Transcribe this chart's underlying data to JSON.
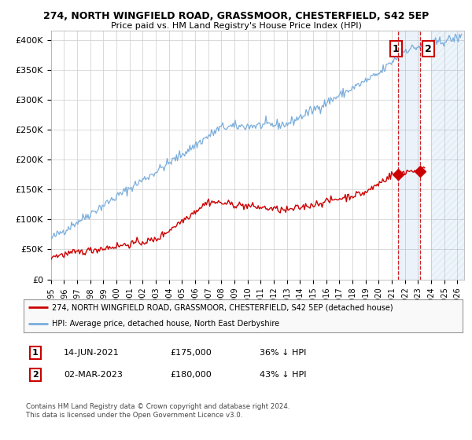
{
  "title_line1": "274, NORTH WINGFIELD ROAD, GRASSMOOR, CHESTERFIELD, S42 5EP",
  "title_line2": "Price paid vs. HM Land Registry's House Price Index (HPI)",
  "ylabel_ticks": [
    "£0",
    "£50K",
    "£100K",
    "£150K",
    "£200K",
    "£250K",
    "£300K",
    "£350K",
    "£400K"
  ],
  "ytick_values": [
    0,
    50000,
    100000,
    150000,
    200000,
    250000,
    300000,
    350000,
    400000
  ],
  "ylim": [
    0,
    415000
  ],
  "xlim_start": 1995.0,
  "xlim_end": 2026.5,
  "hpi_color": "#7aaddc",
  "price_color": "#cc0000",
  "annotation_box_color": "#cc0000",
  "background_color": "#ffffff",
  "grid_color": "#cccccc",
  "transaction1_date": "14-JUN-2021",
  "transaction1_price": "£175,000",
  "transaction1_hpi": "36% ↓ HPI",
  "transaction1_year": 2021.45,
  "transaction1_value": 175000,
  "transaction2_date": "02-MAR-2023",
  "transaction2_price": "£180,000",
  "transaction2_hpi": "43% ↓ HPI",
  "transaction2_year": 2023.17,
  "transaction2_value": 180000,
  "legend_line1": "274, NORTH WINGFIELD ROAD, GRASSMOOR, CHESTERFIELD, S42 5EP (detached house)",
  "legend_line2": "HPI: Average price, detached house, North East Derbyshire",
  "footnote1": "Contains HM Land Registry data © Crown copyright and database right 2024.",
  "footnote2": "This data is licensed under the Open Government Licence v3.0.",
  "xtick_years": [
    1995,
    1996,
    1997,
    1998,
    1999,
    2000,
    2001,
    2002,
    2003,
    2004,
    2005,
    2006,
    2007,
    2008,
    2009,
    2010,
    2011,
    2012,
    2013,
    2014,
    2015,
    2016,
    2017,
    2018,
    2019,
    2020,
    2021,
    2022,
    2023,
    2024,
    2025,
    2026
  ]
}
